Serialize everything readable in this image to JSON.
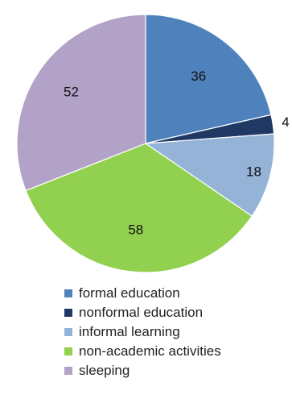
{
  "chart_data": {
    "type": "pie",
    "title": "",
    "start": "top",
    "direction": "clockwise",
    "categories": [
      "formal education",
      "nonformal education",
      "informal learning",
      "non-academic activities",
      "sleeping"
    ],
    "values": [
      36,
      4,
      18,
      58,
      52
    ],
    "data_labels": [
      "36",
      "4",
      "18",
      "58",
      "52"
    ],
    "colors": [
      "#4f81bd",
      "#1f3864",
      "#95b3d7",
      "#92d050",
      "#b3a2c7"
    ],
    "legend": {
      "placement": "bottom",
      "entries": [
        "formal education",
        "nonformal education",
        "informal learning",
        "non-academic activities",
        "sleeping"
      ]
    }
  }
}
